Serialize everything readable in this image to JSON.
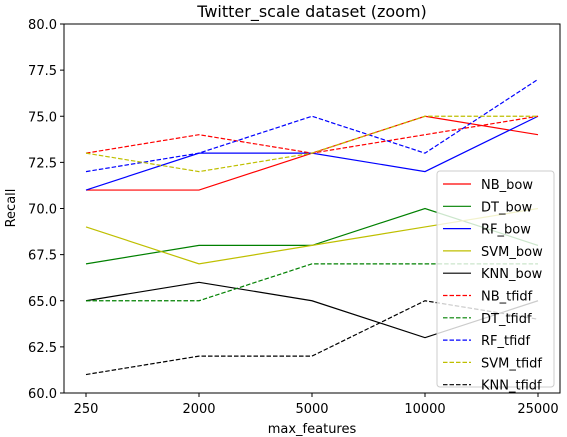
{
  "chart_data": {
    "type": "line",
    "title": "Twitter_scale dataset (zoom)",
    "xlabel": "max_features",
    "ylabel": "Recall",
    "categories": [
      "250",
      "2000",
      "5000",
      "10000",
      "25000"
    ],
    "ylim": [
      60.0,
      80.0
    ],
    "yticks": [
      "60.0",
      "62.5",
      "65.0",
      "67.5",
      "70.0",
      "72.5",
      "75.0",
      "77.5",
      "80.0"
    ],
    "grid": false,
    "legend_position": "right",
    "series": [
      {
        "name": "NB_bow",
        "color": "#ff0000",
        "dash": "solid",
        "values": [
          71,
          71,
          73,
          75,
          74
        ]
      },
      {
        "name": "DT_bow",
        "color": "#008000",
        "dash": "solid",
        "values": [
          67,
          68,
          68,
          70,
          68
        ]
      },
      {
        "name": "RF_bow",
        "color": "#0000ff",
        "dash": "solid",
        "values": [
          71,
          73,
          73,
          72,
          75
        ]
      },
      {
        "name": "SVM_bow",
        "color": "#bfbf00",
        "dash": "solid",
        "values": [
          69,
          67,
          68,
          69,
          70
        ]
      },
      {
        "name": "KNN_bow",
        "color": "#000000",
        "dash": "solid",
        "values": [
          65,
          66,
          65,
          63,
          65
        ]
      },
      {
        "name": "NB_tfidf",
        "color": "#ff0000",
        "dash": "dashed",
        "values": [
          73,
          74,
          73,
          74,
          75
        ]
      },
      {
        "name": "DT_tfidf",
        "color": "#008000",
        "dash": "dashed",
        "values": [
          65,
          65,
          67,
          67,
          67
        ]
      },
      {
        "name": "RF_tfidf",
        "color": "#0000ff",
        "dash": "dashed",
        "values": [
          72,
          73,
          75,
          73,
          77
        ]
      },
      {
        "name": "SVM_tfidf",
        "color": "#bfbf00",
        "dash": "dashed",
        "values": [
          73,
          72,
          73,
          75,
          75
        ]
      },
      {
        "name": "KNN_tfidf",
        "color": "#000000",
        "dash": "dashed",
        "values": [
          61,
          62,
          62,
          65,
          64
        ]
      }
    ]
  }
}
